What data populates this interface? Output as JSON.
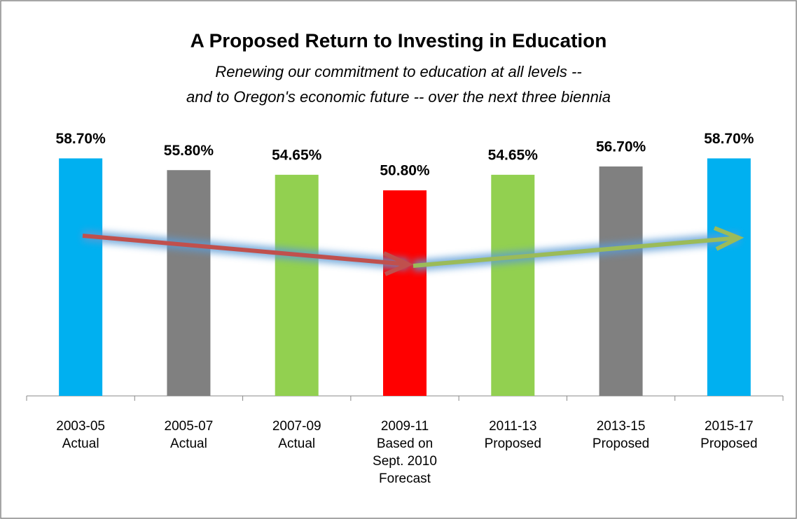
{
  "chart_data": {
    "type": "bar",
    "title": "A Proposed Return to Investing in Education",
    "subtitle": [
      "Renewing our commitment to education at all levels --",
      "and to Oregon's economic future -- over the next three biennia"
    ],
    "categories": [
      [
        "2003-05",
        "Actual"
      ],
      [
        "2005-07",
        "Actual"
      ],
      [
        "2007-09",
        "Actual"
      ],
      [
        "2009-11",
        "Based on",
        "Sept. 2010",
        "Forecast"
      ],
      [
        "2011-13",
        "Proposed"
      ],
      [
        "2013-15",
        "Proposed"
      ],
      [
        "2015-17",
        "Proposed"
      ]
    ],
    "values": [
      58.7,
      55.8,
      54.65,
      50.8,
      54.65,
      56.7,
      58.7
    ],
    "value_labels": [
      "58.70%",
      "55.80%",
      "54.65%",
      "50.80%",
      "54.65%",
      "56.70%",
      "58.70%"
    ],
    "colors": [
      "#00b0f0",
      "#808080",
      "#92d050",
      "#ff0000",
      "#92d050",
      "#808080",
      "#00b0f0"
    ],
    "ylim": [
      0,
      65
    ]
  }
}
